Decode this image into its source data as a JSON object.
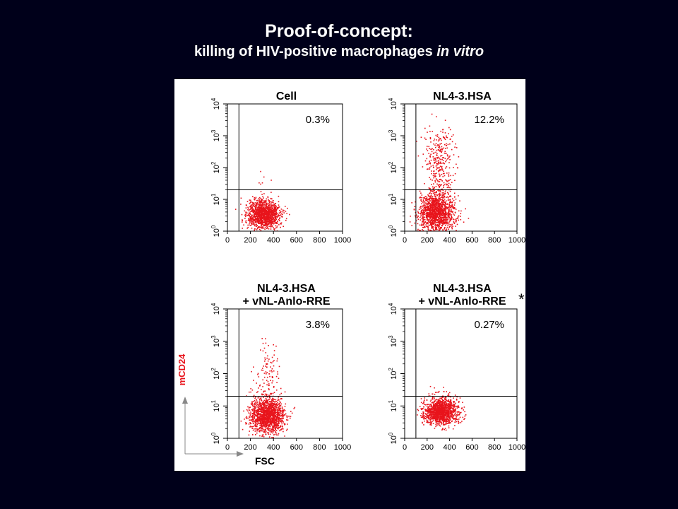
{
  "slide": {
    "title": "Proof-of-concept:",
    "subtitle_main": "killing of HIV-positive macrophages ",
    "subtitle_italic": "in vitro"
  },
  "axes": {
    "ylabel": "mCD24",
    "xlabel": "FSC",
    "x_ticks": [
      "0",
      "200",
      "400",
      "600",
      "800",
      "1000"
    ],
    "y_tick_bases": [
      "10",
      "10",
      "10",
      "10",
      "10"
    ],
    "y_tick_exponents": [
      "0",
      "1",
      "2",
      "3",
      "4"
    ],
    "axis_label_color": "#e8141c"
  },
  "chart_data": [
    {
      "type": "scatter",
      "panel": "top-left",
      "title_lines": [
        "Cell"
      ],
      "percent_label": "0.3%",
      "xlim": [
        0,
        1000
      ],
      "ylim_log10": [
        0,
        4
      ],
      "x_gate": 100,
      "y_gate_log10": 1.3,
      "points_color": "#e8141c",
      "populations": [
        {
          "x_mean": 310,
          "x_sd": 70,
          "logy_mean": 0.55,
          "logy_sd": 0.22,
          "n": 1300
        },
        {
          "x_mean": 320,
          "x_sd": 70,
          "logy_mean": 1.45,
          "logy_sd": 0.2,
          "n": 10
        }
      ]
    },
    {
      "type": "scatter",
      "panel": "top-right",
      "title_lines": [
        "NL4-3.HSA"
      ],
      "percent_label": "12.2%",
      "xlim": [
        0,
        1000
      ],
      "ylim_log10": [
        0,
        4
      ],
      "x_gate": 100,
      "y_gate_log10": 1.3,
      "points_color": "#e8141c",
      "populations": [
        {
          "x_mean": 280,
          "x_sd": 80,
          "logy_mean": 0.6,
          "logy_sd": 0.3,
          "n": 1400
        },
        {
          "x_mean": 300,
          "x_sd": 65,
          "logy_mean": 2.2,
          "logy_sd": 0.55,
          "n": 320
        }
      ]
    },
    {
      "type": "scatter",
      "panel": "bottom-left",
      "title_lines": [
        "NL4-3.HSA",
        "+ vNL-Anlo-RRE"
      ],
      "percent_label": "3.8%",
      "xlim": [
        0,
        1000
      ],
      "ylim_log10": [
        0,
        4
      ],
      "x_gate": 100,
      "y_gate_log10": 1.3,
      "points_color": "#e8141c",
      "populations": [
        {
          "x_mean": 340,
          "x_sd": 75,
          "logy_mean": 0.7,
          "logy_sd": 0.28,
          "n": 1400
        },
        {
          "x_mean": 340,
          "x_sd": 50,
          "logy_mean": 2.0,
          "logy_sd": 0.5,
          "n": 110
        }
      ]
    },
    {
      "type": "scatter",
      "panel": "bottom-right",
      "title_lines": [
        "NL4-3.HSA",
        "+ vNL-Anlo-RRE"
      ],
      "title_marker": "*",
      "percent_label": "0.27%",
      "xlim": [
        0,
        1000
      ],
      "ylim_log10": [
        0,
        4
      ],
      "x_gate": 100,
      "y_gate_log10": 1.3,
      "points_color": "#e8141c",
      "populations": [
        {
          "x_mean": 320,
          "x_sd": 75,
          "logy_mean": 0.85,
          "logy_sd": 0.2,
          "n": 1300
        },
        {
          "x_mean": 330,
          "x_sd": 60,
          "logy_mean": 1.45,
          "logy_sd": 0.12,
          "n": 10
        }
      ]
    }
  ]
}
